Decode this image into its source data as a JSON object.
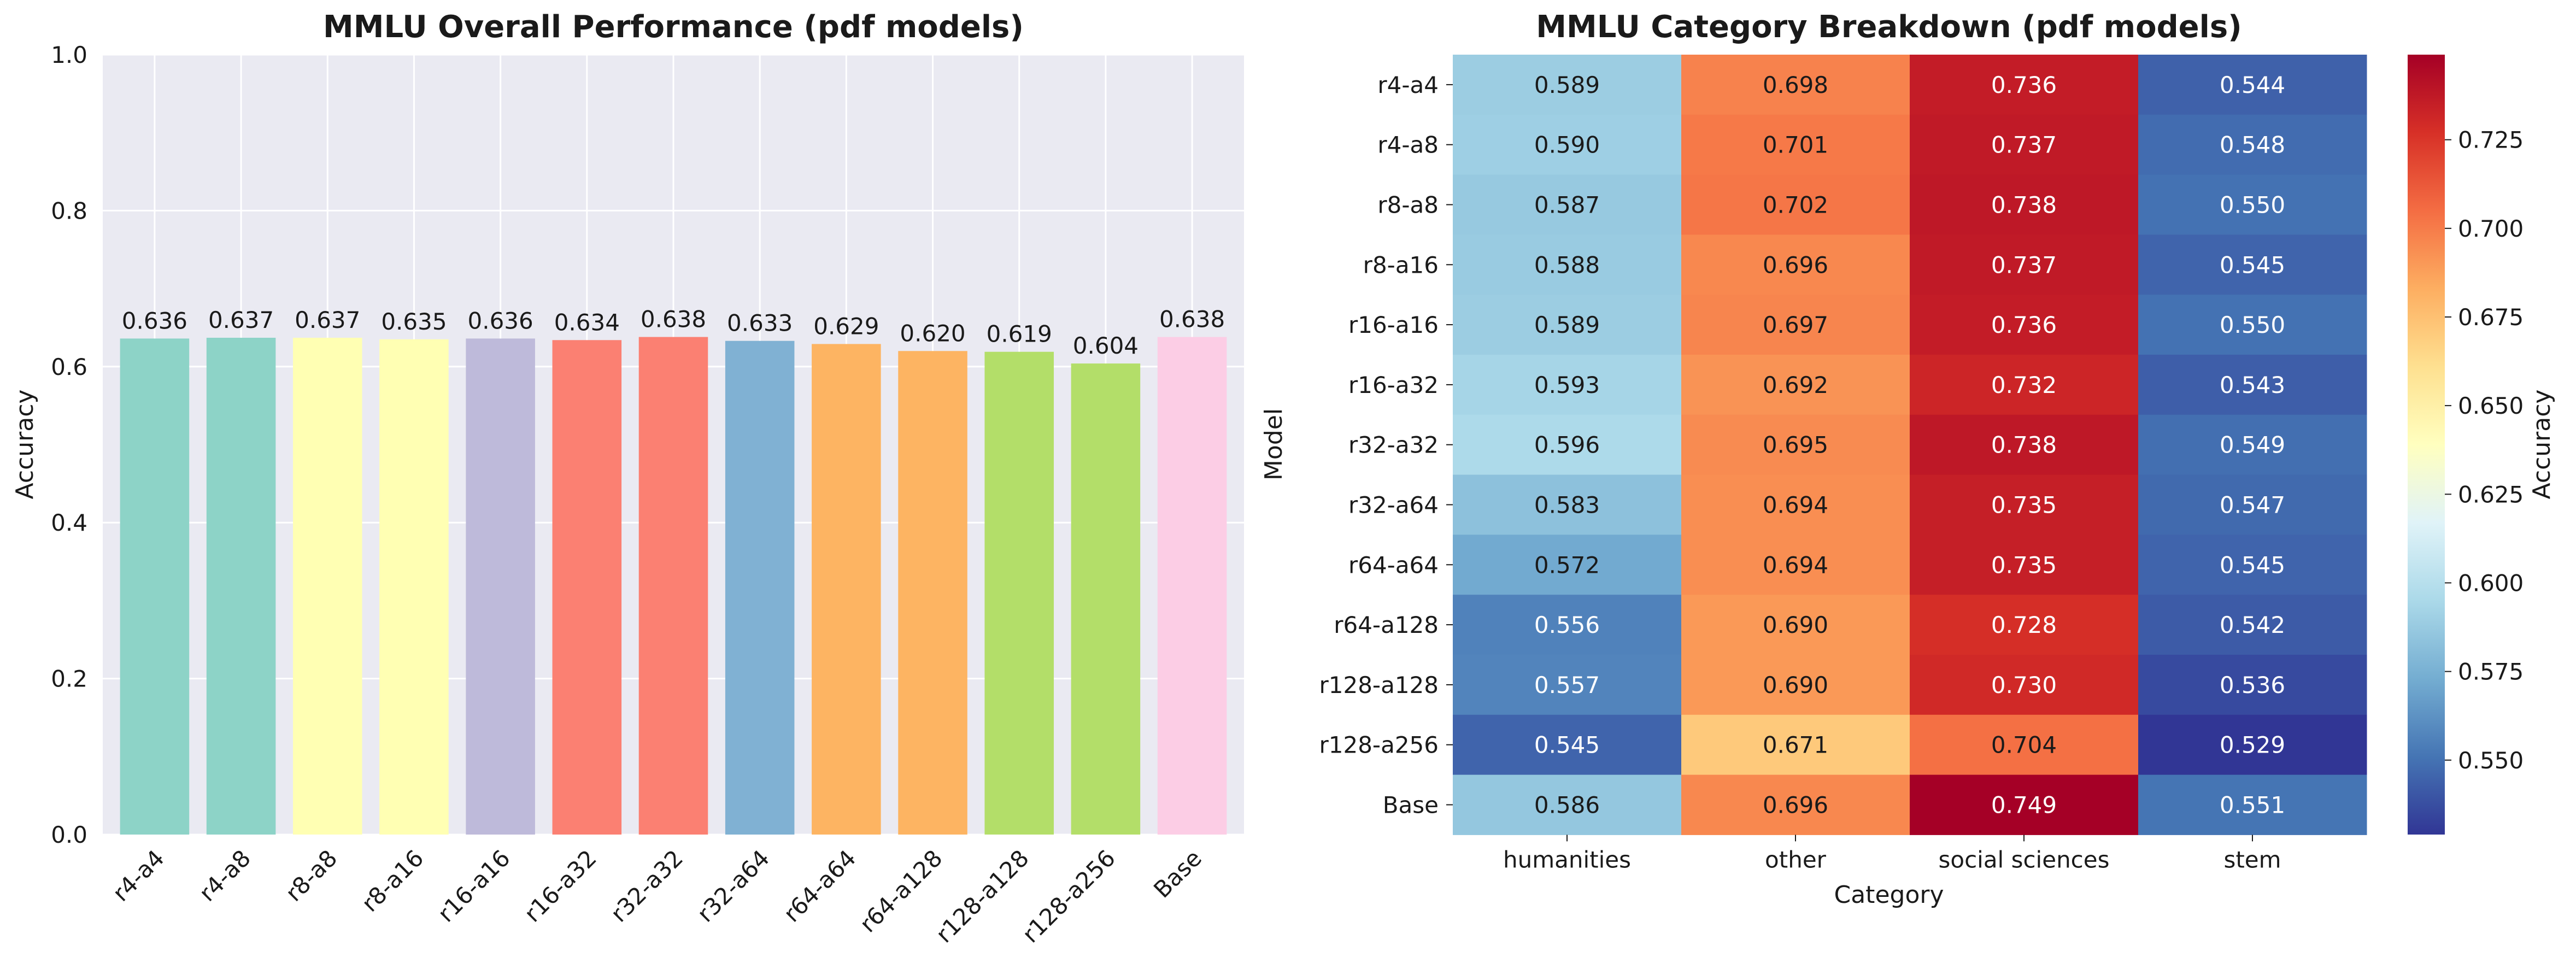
{
  "chart_data": [
    {
      "type": "bar",
      "title": "MMLU Overall Performance (pdf models)",
      "ylabel": "Accuracy",
      "xlabel": "",
      "ylim": [
        0,
        1.0
      ],
      "yticks": [
        "0.0",
        "0.2",
        "0.4",
        "0.6",
        "0.8",
        "1.0"
      ],
      "grid": true,
      "categories": [
        "r4-a4",
        "r4-a8",
        "r8-a8",
        "r8-a16",
        "r16-a16",
        "r16-a32",
        "r32-a32",
        "r32-a64",
        "r64-a64",
        "r64-a128",
        "r128-a128",
        "r128-a256",
        "Base"
      ],
      "values": [
        0.636,
        0.637,
        0.637,
        0.635,
        0.636,
        0.634,
        0.638,
        0.633,
        0.629,
        0.62,
        0.619,
        0.604,
        0.638
      ],
      "value_labels": [
        "0.636",
        "0.637",
        "0.637",
        "0.635",
        "0.636",
        "0.634",
        "0.638",
        "0.633",
        "0.629",
        "0.620",
        "0.619",
        "0.604",
        "0.638"
      ],
      "colors": [
        "#8dd3c7",
        "#8dd3c7",
        "#ffffb3",
        "#ffffb3",
        "#bebada",
        "#fb8072",
        "#fb8072",
        "#80b1d3",
        "#fdb462",
        "#fdb462",
        "#b3de69",
        "#b3de69",
        "#fccde5"
      ]
    },
    {
      "type": "heatmap",
      "title": "MMLU Category Breakdown (pdf models)",
      "xlabel": "Category",
      "ylabel": "Model",
      "colorbar_label": "Accuracy",
      "colormap": "RdYlBu_r",
      "vmin": 0.529,
      "vmax": 0.749,
      "colorbar_ticks": [
        "0.550",
        "0.575",
        "0.600",
        "0.625",
        "0.650",
        "0.675",
        "0.700",
        "0.725"
      ],
      "columns": [
        "humanities",
        "other",
        "social sciences",
        "stem"
      ],
      "rows": [
        "r4-a4",
        "r4-a8",
        "r8-a8",
        "r8-a16",
        "r16-a16",
        "r16-a32",
        "r32-a32",
        "r32-a64",
        "r64-a64",
        "r64-a128",
        "r128-a128",
        "r128-a256",
        "Base"
      ],
      "values": [
        [
          0.589,
          0.698,
          0.736,
          0.544
        ],
        [
          0.59,
          0.701,
          0.737,
          0.548
        ],
        [
          0.587,
          0.702,
          0.738,
          0.55
        ],
        [
          0.588,
          0.696,
          0.737,
          0.545
        ],
        [
          0.589,
          0.697,
          0.736,
          0.55
        ],
        [
          0.593,
          0.692,
          0.732,
          0.543
        ],
        [
          0.596,
          0.695,
          0.738,
          0.549
        ],
        [
          0.583,
          0.694,
          0.735,
          0.547
        ],
        [
          0.572,
          0.694,
          0.735,
          0.545
        ],
        [
          0.556,
          0.69,
          0.728,
          0.542
        ],
        [
          0.557,
          0.69,
          0.73,
          0.536
        ],
        [
          0.545,
          0.671,
          0.704,
          0.529
        ],
        [
          0.586,
          0.696,
          0.749,
          0.551
        ]
      ],
      "cell_labels": [
        [
          "0.589",
          "0.698",
          "0.736",
          "0.544"
        ],
        [
          "0.590",
          "0.701",
          "0.737",
          "0.548"
        ],
        [
          "0.587",
          "0.702",
          "0.738",
          "0.550"
        ],
        [
          "0.588",
          "0.696",
          "0.737",
          "0.545"
        ],
        [
          "0.589",
          "0.697",
          "0.736",
          "0.550"
        ],
        [
          "0.593",
          "0.692",
          "0.732",
          "0.543"
        ],
        [
          "0.596",
          "0.695",
          "0.738",
          "0.549"
        ],
        [
          "0.583",
          "0.694",
          "0.735",
          "0.547"
        ],
        [
          "0.572",
          "0.694",
          "0.735",
          "0.545"
        ],
        [
          "0.556",
          "0.690",
          "0.728",
          "0.542"
        ],
        [
          "0.557",
          "0.690",
          "0.730",
          "0.536"
        ],
        [
          "0.545",
          "0.671",
          "0.704",
          "0.529"
        ],
        [
          "0.586",
          "0.696",
          "0.749",
          "0.551"
        ]
      ]
    }
  ]
}
